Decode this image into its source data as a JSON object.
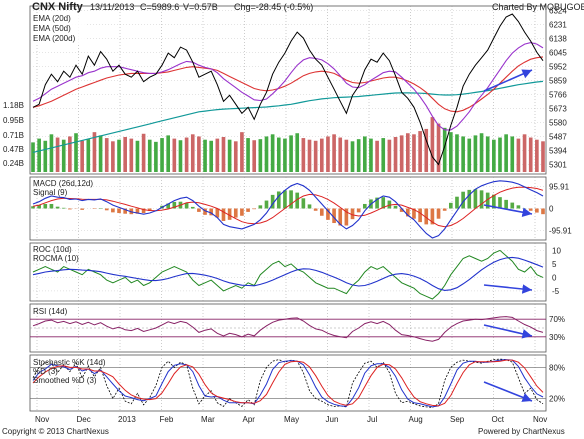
{
  "chart_data": {
    "type": "line",
    "title": "CNX Nifty",
    "header": {
      "date": "13/11/2013",
      "close": "C=5989.6",
      "volume": "V=0.57B",
      "change": "Chg=-28.45 (-0.5%)",
      "charted_by": "Charted By MOBUGOBU"
    },
    "footer": {
      "left": "Copyright © 2013 ChartNexus",
      "right": "Powered by ChartNexus"
    },
    "x_labels": [
      "Nov",
      "Dec",
      "2013",
      "Feb",
      "Mar",
      "Apr",
      "May",
      "Jun",
      "Jul",
      "Aug",
      "Sep",
      "Oct",
      "Nov"
    ],
    "price_panel": {
      "legend": [
        "EMA (20d)",
        "EMA (50d)",
        "EMA (200d)"
      ],
      "yticks": [
        6324,
        6231,
        6138,
        6045,
        5952,
        5859,
        5766,
        5673,
        5580,
        5487,
        5394,
        5301
      ],
      "ylim": [
        5250,
        6340
      ],
      "close": [
        5680,
        5700,
        5830,
        5900,
        5850,
        5920,
        5880,
        5960,
        5900,
        6020,
        5960,
        6050,
        6000,
        5920,
        5960,
        5900,
        5880,
        5920,
        5850,
        5880,
        5900,
        5960,
        6040,
        6010,
        6080,
        6060,
        5980,
        5880,
        5900,
        5920,
        5830,
        5720,
        5760,
        5700,
        5640,
        5680,
        5600,
        5700,
        5780,
        5900,
        5980,
        6040,
        6120,
        6180,
        6140,
        6060,
        6000,
        5960,
        5880,
        5800,
        5720,
        5640,
        5760,
        5820,
        5930,
        6000,
        5980,
        6040,
        5990,
        5890,
        5780,
        5740,
        5680,
        5580,
        5460,
        5350,
        5300,
        5420,
        5560,
        5680,
        5820,
        5900,
        5960,
        6010,
        6060,
        6140,
        6220,
        6280,
        6300,
        6250,
        6180,
        6120,
        6045,
        5990
      ],
      "ema20": [
        5720,
        5740,
        5770,
        5800,
        5820,
        5840,
        5860,
        5880,
        5890,
        5910,
        5920,
        5940,
        5950,
        5950,
        5950,
        5940,
        5930,
        5920,
        5910,
        5905,
        5905,
        5915,
        5930,
        5950,
        5970,
        5985,
        5980,
        5960,
        5945,
        5935,
        5910,
        5870,
        5840,
        5810,
        5780,
        5755,
        5730,
        5725,
        5735,
        5770,
        5810,
        5855,
        5910,
        5960,
        5995,
        6010,
        6005,
        5995,
        5970,
        5935,
        5890,
        5840,
        5815,
        5810,
        5830,
        5860,
        5885,
        5910,
        5920,
        5915,
        5880,
        5840,
        5800,
        5750,
        5690,
        5620,
        5560,
        5530,
        5530,
        5555,
        5600,
        5650,
        5710,
        5760,
        5810,
        5870,
        5930,
        5990,
        6040,
        6075,
        6100,
        6110,
        6100,
        6075
      ],
      "ema50": [
        5680,
        5690,
        5705,
        5720,
        5740,
        5760,
        5780,
        5800,
        5815,
        5830,
        5845,
        5860,
        5875,
        5885,
        5895,
        5900,
        5905,
        5905,
        5905,
        5905,
        5905,
        5910,
        5915,
        5925,
        5935,
        5945,
        5950,
        5945,
        5940,
        5935,
        5925,
        5905,
        5885,
        5865,
        5845,
        5825,
        5805,
        5795,
        5790,
        5795,
        5805,
        5820,
        5840,
        5865,
        5890,
        5905,
        5915,
        5920,
        5915,
        5905,
        5885,
        5860,
        5845,
        5840,
        5845,
        5855,
        5865,
        5875,
        5880,
        5880,
        5870,
        5855,
        5835,
        5810,
        5780,
        5740,
        5700,
        5670,
        5655,
        5650,
        5660,
        5680,
        5705,
        5735,
        5765,
        5800,
        5840,
        5880,
        5920,
        5955,
        5980,
        6000,
        6010,
        6015
      ],
      "ema200": [
        5380,
        5390,
        5400,
        5410,
        5420,
        5430,
        5440,
        5450,
        5460,
        5470,
        5480,
        5490,
        5500,
        5510,
        5520,
        5530,
        5540,
        5550,
        5560,
        5570,
        5580,
        5590,
        5600,
        5610,
        5620,
        5630,
        5640,
        5650,
        5655,
        5660,
        5665,
        5668,
        5670,
        5672,
        5674,
        5676,
        5678,
        5680,
        5682,
        5686,
        5690,
        5695,
        5700,
        5708,
        5716,
        5724,
        5730,
        5736,
        5740,
        5744,
        5746,
        5748,
        5750,
        5752,
        5756,
        5760,
        5764,
        5768,
        5772,
        5775,
        5776,
        5776,
        5775,
        5774,
        5772,
        5768,
        5764,
        5762,
        5762,
        5764,
        5768,
        5773,
        5779,
        5785,
        5791,
        5798,
        5806,
        5814,
        5822,
        5830,
        5836,
        5842,
        5848,
        5852
      ]
    },
    "volume": {
      "labels": [
        "1.18B",
        "0.95B",
        "0.71B",
        "0.47B",
        "0.24B"
      ],
      "ylim": [
        0,
        1.3
      ],
      "values": [
        0.55,
        0.62,
        0.58,
        0.7,
        0.64,
        0.6,
        0.66,
        0.72,
        0.58,
        0.61,
        0.74,
        0.68,
        0.63,
        0.57,
        0.6,
        0.65,
        0.62,
        0.58,
        0.71,
        0.6,
        0.56,
        0.63,
        0.68,
        0.62,
        0.59,
        0.64,
        0.7,
        0.66,
        0.6,
        0.58,
        0.62,
        0.65,
        0.6,
        0.57,
        0.74,
        0.63,
        0.59,
        0.61,
        0.66,
        0.7,
        0.64,
        0.62,
        0.68,
        0.72,
        0.63,
        0.6,
        0.58,
        0.62,
        0.66,
        0.7,
        0.64,
        0.6,
        0.57,
        0.61,
        0.66,
        0.62,
        0.58,
        0.63,
        0.6,
        0.65,
        0.68,
        0.72,
        0.7,
        0.76,
        0.8,
        1.02,
        0.9,
        0.82,
        0.74,
        0.7,
        0.66,
        0.62,
        0.68,
        0.72,
        0.66,
        0.6,
        0.64,
        0.7,
        0.66,
        0.62,
        0.7,
        0.64,
        0.6,
        0.57
      ]
    },
    "macd_panel": {
      "legend": [
        "MACD (26d,12d)",
        "Signal (9)"
      ],
      "yticks": [
        95.91,
        0,
        -95.91
      ],
      "ylim": [
        -130,
        130
      ],
      "macd": [
        20,
        30,
        45,
        55,
        50,
        48,
        40,
        42,
        35,
        40,
        38,
        42,
        30,
        15,
        5,
        -5,
        -15,
        -20,
        -25,
        -20,
        -10,
        5,
        20,
        35,
        45,
        50,
        35,
        10,
        -10,
        -20,
        -40,
        -70,
        -80,
        -85,
        -90,
        -80,
        -70,
        -50,
        -20,
        20,
        55,
        80,
        100,
        110,
        100,
        80,
        50,
        20,
        -10,
        -40,
        -70,
        -90,
        -75,
        -50,
        -10,
        20,
        40,
        55,
        50,
        30,
        0,
        -30,
        -50,
        -80,
        -110,
        -130,
        -120,
        -90,
        -50,
        -10,
        30,
        60,
        85,
        100,
        110,
        118,
        122,
        120,
        116,
        108,
        95,
        82,
        70,
        55
      ],
      "signal": [
        10,
        15,
        25,
        35,
        42,
        45,
        44,
        43,
        41,
        40,
        40,
        40,
        38,
        32,
        25,
        18,
        10,
        3,
        -5,
        -9,
        -10,
        -7,
        -2,
        6,
        15,
        25,
        28,
        25,
        18,
        10,
        0,
        -15,
        -30,
        -45,
        -58,
        -65,
        -67,
        -64,
        -55,
        -40,
        -20,
        0,
        20,
        40,
        55,
        62,
        60,
        52,
        40,
        24,
        5,
        -15,
        -28,
        -33,
        -30,
        -20,
        -8,
        5,
        15,
        18,
        15,
        5,
        -5,
        -20,
        -40,
        -60,
        -75,
        -80,
        -75,
        -62,
        -44,
        -22,
        0,
        20,
        40,
        57,
        72,
        82,
        90,
        94,
        94,
        92,
        88,
        80
      ]
    },
    "roc_panel": {
      "legend": [
        "ROC (10d)",
        "ROCMA (10)"
      ],
      "yticks": [
        10,
        5,
        0,
        -5
      ],
      "ylim": [
        -8,
        12
      ],
      "roc": [
        2,
        3,
        4,
        3,
        2,
        4,
        3,
        2,
        1,
        3,
        2,
        1,
        -1,
        -2,
        -1,
        0,
        -2,
        -1,
        -3,
        -2,
        0,
        2,
        3,
        4,
        3,
        2,
        -1,
        -3,
        -2,
        -1,
        -3,
        -5,
        -4,
        -3,
        -4,
        -2,
        -3,
        1,
        3,
        5,
        6,
        4,
        5,
        3,
        2,
        0,
        -2,
        -3,
        -4,
        -4,
        -5,
        -6,
        -3,
        -1,
        2,
        4,
        3,
        4,
        2,
        0,
        -2,
        -3,
        -4,
        -6,
        -7,
        -8,
        -6,
        -3,
        1,
        4,
        7,
        8,
        7,
        6,
        7,
        9,
        10,
        8,
        6,
        3,
        2,
        4,
        1,
        0
      ],
      "rocma": [
        1,
        1.5,
        2,
        2.3,
        2.5,
        2.8,
        3,
        2.9,
        2.7,
        2.6,
        2.4,
        2.1,
        1.6,
        1.1,
        0.7,
        0.4,
        0,
        -0.4,
        -0.8,
        -1.1,
        -1.2,
        -0.9,
        -0.4,
        0.3,
        0.9,
        1.4,
        1.5,
        1.2,
        0.8,
        0.3,
        -0.4,
        -1.3,
        -2,
        -2.5,
        -2.9,
        -3,
        -3.1,
        -2.6,
        -1.9,
        -1,
        0,
        1,
        2,
        2.8,
        3.2,
        3.1,
        2.6,
        1.9,
        1,
        0.1,
        -0.9,
        -2,
        -2.8,
        -3.2,
        -3,
        -2.3,
        -1.4,
        -0.4,
        0.6,
        1.2,
        1.4,
        1.1,
        0.5,
        -0.4,
        -1.6,
        -3,
        -4.2,
        -4.8,
        -4.6,
        -3.8,
        -2.4,
        -0.8,
        1,
        2.8,
        4.3,
        5.6,
        6.6,
        7.2,
        7.4,
        7.1,
        6.4,
        5.6,
        4.7,
        3.8
      ]
    },
    "rsi_panel": {
      "legend": [
        "RSI (14d)"
      ],
      "yticks": [
        "70%",
        "30%"
      ],
      "ylim": [
        0,
        100
      ],
      "values": [
        55,
        60,
        66,
        68,
        62,
        65,
        60,
        64,
        58,
        63,
        57,
        62,
        54,
        48,
        52,
        46,
        44,
        49,
        42,
        46,
        50,
        57,
        64,
        60,
        65,
        62,
        52,
        40,
        45,
        48,
        38,
        32,
        38,
        35,
        30,
        36,
        32,
        45,
        55,
        63,
        68,
        70,
        72,
        73,
        66,
        56,
        48,
        45,
        38,
        33,
        30,
        28,
        42,
        50,
        60,
        64,
        60,
        65,
        58,
        45,
        35,
        33,
        30,
        26,
        22,
        20,
        24,
        40,
        52,
        60,
        66,
        68,
        70,
        69,
        71,
        73,
        75,
        76,
        74,
        66,
        58,
        52,
        44,
        40
      ]
    },
    "stoch_panel": {
      "legend": [
        "Stochastic %K (14d)",
        "%D (3)",
        "Smoothed %D (3)"
      ],
      "yticks": [
        "80%",
        "20%"
      ],
      "ylim": [
        0,
        100
      ],
      "k": [
        60,
        80,
        90,
        88,
        70,
        85,
        72,
        88,
        60,
        82,
        62,
        80,
        45,
        20,
        40,
        15,
        10,
        30,
        8,
        22,
        45,
        80,
        92,
        80,
        90,
        85,
        40,
        10,
        25,
        35,
        12,
        5,
        20,
        12,
        5,
        18,
        8,
        55,
        80,
        92,
        95,
        90,
        94,
        92,
        70,
        35,
        20,
        15,
        8,
        5,
        6,
        4,
        50,
        70,
        88,
        92,
        80,
        90,
        70,
        30,
        12,
        15,
        10,
        6,
        4,
        3,
        10,
        55,
        80,
        90,
        94,
        92,
        90,
        88,
        92,
        95,
        96,
        95,
        90,
        60,
        30,
        40,
        18,
        10
      ],
      "d": [
        55,
        70,
        77,
        86,
        83,
        81,
        76,
        82,
        73,
        77,
        68,
        75,
        62,
        48,
        35,
        25,
        22,
        18,
        16,
        20,
        25,
        49,
        72,
        84,
        87,
        85,
        72,
        45,
        25,
        23,
        24,
        17,
        12,
        12,
        12,
        12,
        10,
        27,
        48,
        76,
        89,
        92,
        93,
        92,
        85,
        66,
        42,
        23,
        14,
        9,
        6,
        5,
        20,
        41,
        69,
        83,
        87,
        87,
        80,
        63,
        37,
        19,
        12,
        10,
        7,
        4,
        6,
        23,
        48,
        75,
        88,
        92,
        92,
        90,
        90,
        92,
        94,
        95,
        94,
        82,
        60,
        43,
        29,
        23
      ],
      "smoothed_d": [
        50,
        62,
        71,
        78,
        82,
        83,
        80,
        80,
        77,
        77,
        73,
        73,
        68,
        62,
        48,
        36,
        27,
        22,
        19,
        18,
        20,
        31,
        49,
        68,
        81,
        85,
        81,
        67,
        47,
        31,
        24,
        21,
        18,
        14,
        12,
        12,
        11,
        16,
        28,
        50,
        71,
        86,
        91,
        92,
        90,
        81,
        64,
        44,
        26,
        15,
        10,
        7,
        10,
        22,
        43,
        64,
        80,
        86,
        85,
        77,
        60,
        40,
        23,
        14,
        10,
        7,
        6,
        11,
        26,
        49,
        70,
        85,
        91,
        91,
        91,
        91,
        92,
        94,
        94,
        90,
        79,
        62,
        44,
        32
      ]
    }
  }
}
